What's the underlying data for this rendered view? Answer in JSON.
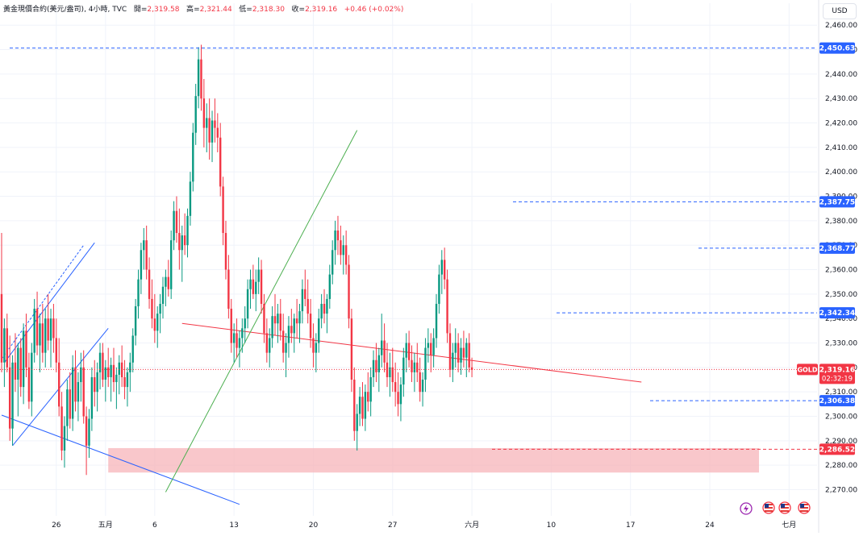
{
  "header": {
    "symbol": "黃金現價合約(美元/盎司)",
    "interval": "4小時",
    "source": "TVC",
    "open_label": "開",
    "open": "2,319.58",
    "high_label": "高",
    "high": "2,321.44",
    "low_label": "低",
    "low": "2,318.30",
    "close_label": "收",
    "close": "2,319.16",
    "change": "+0.46 (+0.02%)"
  },
  "currency_button": "USD",
  "colors": {
    "up": "#089981",
    "down": "#f23645",
    "hline": "#2962ff",
    "support_zone": "#f7b4b9",
    "trend_red": "#f23645",
    "trend_green": "#4caf50",
    "channel_blue": "#2962ff",
    "price_label": "#f23645"
  },
  "chart_data": {
    "type": "candlestick",
    "title": "",
    "ylim": [
      2262,
      2465
    ],
    "y_ticks": [
      "2,270.00",
      "2,280.00",
      "2,290.00",
      "2,300.00",
      "2,310.00",
      "2,320.00",
      "2,330.00",
      "2,340.00",
      "2,350.00",
      "2,360.00",
      "2,370.00",
      "2,380.00",
      "2,390.00",
      "2,400.00",
      "2,410.00",
      "2,420.00",
      "2,430.00",
      "2,440.00",
      "2,450.00",
      "2,460.00"
    ],
    "x_ticks": [
      {
        "label": "26",
        "index": 20
      },
      {
        "label": "五月",
        "index": 38
      },
      {
        "label": "6",
        "index": 56
      },
      {
        "label": "13",
        "index": 85
      },
      {
        "label": "20",
        "index": 114
      },
      {
        "label": "27",
        "index": 143
      },
      {
        "label": "六月",
        "index": 172
      },
      {
        "label": "10",
        "index": 201
      },
      {
        "label": "17",
        "index": 230
      },
      {
        "label": "24",
        "index": 259
      },
      {
        "label": "七月",
        "index": 288
      }
    ],
    "candles": [
      [
        2350,
        2375,
        2318,
        2322
      ],
      [
        2322,
        2340,
        2312,
        2336
      ],
      [
        2336,
        2342,
        2318,
        2320
      ],
      [
        2320,
        2333,
        2290,
        2295
      ],
      [
        2295,
        2325,
        2288,
        2322
      ],
      [
        2322,
        2334,
        2310,
        2315
      ],
      [
        2315,
        2330,
        2300,
        2328
      ],
      [
        2328,
        2332,
        2308,
        2312
      ],
      [
        2312,
        2338,
        2305,
        2335
      ],
      [
        2335,
        2342,
        2316,
        2320
      ],
      [
        2320,
        2326,
        2303,
        2306
      ],
      [
        2306,
        2330,
        2300,
        2326
      ],
      [
        2326,
        2348,
        2322,
        2344
      ],
      [
        2344,
        2351,
        2325,
        2329
      ],
      [
        2329,
        2342,
        2318,
        2338
      ],
      [
        2338,
        2346,
        2322,
        2326
      ],
      [
        2326,
        2344,
        2320,
        2340
      ],
      [
        2340,
        2350,
        2327,
        2331
      ],
      [
        2331,
        2344,
        2320,
        2340
      ],
      [
        2340,
        2346,
        2326,
        2332
      ],
      [
        2332,
        2340,
        2318,
        2322
      ],
      [
        2322,
        2332,
        2300,
        2304
      ],
      [
        2304,
        2310,
        2282,
        2286
      ],
      [
        2286,
        2300,
        2279,
        2296
      ],
      [
        2296,
        2315,
        2290,
        2311
      ],
      [
        2311,
        2318,
        2295,
        2299
      ],
      [
        2299,
        2325,
        2294,
        2320
      ],
      [
        2320,
        2327,
        2302,
        2306
      ],
      [
        2306,
        2318,
        2298,
        2314
      ],
      [
        2314,
        2326,
        2306,
        2320
      ],
      [
        2320,
        2327,
        2297,
        2300
      ],
      [
        2300,
        2304,
        2276,
        2288
      ],
      [
        2288,
        2303,
        2283,
        2299
      ],
      [
        2299,
        2320,
        2294,
        2316
      ],
      [
        2316,
        2323,
        2304,
        2310
      ],
      [
        2310,
        2322,
        2302,
        2318
      ],
      [
        2318,
        2330,
        2311,
        2326
      ],
      [
        2326,
        2330,
        2312,
        2315
      ],
      [
        2315,
        2323,
        2306,
        2320
      ],
      [
        2320,
        2328,
        2312,
        2316
      ],
      [
        2316,
        2324,
        2306,
        2321
      ],
      [
        2321,
        2328,
        2310,
        2314
      ],
      [
        2314,
        2320,
        2303,
        2317
      ],
      [
        2317,
        2325,
        2309,
        2322
      ],
      [
        2322,
        2329,
        2312,
        2316
      ],
      [
        2316,
        2323,
        2307,
        2312
      ],
      [
        2312,
        2320,
        2304,
        2318
      ],
      [
        2318,
        2326,
        2310,
        2322
      ],
      [
        2322,
        2336,
        2318,
        2333
      ],
      [
        2333,
        2348,
        2329,
        2345
      ],
      [
        2345,
        2360,
        2340,
        2356
      ],
      [
        2356,
        2371,
        2350,
        2368
      ],
      [
        2368,
        2377,
        2360,
        2372
      ],
      [
        2372,
        2378,
        2356,
        2360
      ],
      [
        2360,
        2365,
        2344,
        2348
      ],
      [
        2348,
        2356,
        2336,
        2340
      ],
      [
        2340,
        2350,
        2330,
        2335
      ],
      [
        2335,
        2345,
        2328,
        2342
      ],
      [
        2342,
        2350,
        2334,
        2346
      ],
      [
        2346,
        2357,
        2340,
        2353
      ],
      [
        2353,
        2360,
        2345,
        2357
      ],
      [
        2357,
        2364,
        2349,
        2352
      ],
      [
        2352,
        2376,
        2348,
        2372
      ],
      [
        2372,
        2388,
        2368,
        2384
      ],
      [
        2384,
        2390,
        2371,
        2375
      ],
      [
        2375,
        2385,
        2360,
        2368
      ],
      [
        2368,
        2378,
        2355,
        2374
      ],
      [
        2374,
        2383,
        2366,
        2370
      ],
      [
        2370,
        2385,
        2365,
        2382
      ],
      [
        2382,
        2400,
        2378,
        2396
      ],
      [
        2396,
        2420,
        2392,
        2416
      ],
      [
        2416,
        2436,
        2411,
        2431
      ],
      [
        2431,
        2451,
        2426,
        2446
      ],
      [
        2446,
        2452,
        2425,
        2430
      ],
      [
        2430,
        2438,
        2410,
        2418
      ],
      [
        2418,
        2428,
        2408,
        2422
      ],
      [
        2422,
        2430,
        2405,
        2412
      ],
      [
        2412,
        2425,
        2404,
        2421
      ],
      [
        2421,
        2430,
        2412,
        2418
      ],
      [
        2418,
        2424,
        2408,
        2414
      ],
      [
        2414,
        2420,
        2390,
        2394
      ],
      [
        2394,
        2398,
        2370,
        2375
      ],
      [
        2375,
        2380,
        2356,
        2360
      ],
      [
        2360,
        2366,
        2340,
        2344
      ],
      [
        2344,
        2348,
        2326,
        2330
      ],
      [
        2330,
        2338,
        2322,
        2334
      ],
      [
        2334,
        2340,
        2324,
        2328
      ],
      [
        2328,
        2335,
        2320,
        2332
      ],
      [
        2332,
        2340,
        2326,
        2336
      ],
      [
        2336,
        2345,
        2330,
        2340
      ],
      [
        2340,
        2356,
        2336,
        2352
      ],
      [
        2352,
        2360,
        2344,
        2356
      ],
      [
        2356,
        2362,
        2348,
        2350
      ],
      [
        2350,
        2360,
        2343,
        2355
      ],
      [
        2355,
        2365,
        2350,
        2360
      ],
      [
        2360,
        2364,
        2342,
        2346
      ],
      [
        2346,
        2350,
        2330,
        2334
      ],
      [
        2334,
        2340,
        2322,
        2326
      ],
      [
        2326,
        2336,
        2320,
        2332
      ],
      [
        2332,
        2345,
        2328,
        2341
      ],
      [
        2341,
        2350,
        2333,
        2338
      ],
      [
        2338,
        2346,
        2330,
        2342
      ],
      [
        2342,
        2348,
        2331,
        2335
      ],
      [
        2335,
        2342,
        2322,
        2326
      ],
      [
        2326,
        2334,
        2316,
        2330
      ],
      [
        2330,
        2341,
        2324,
        2337
      ],
      [
        2337,
        2344,
        2330,
        2334
      ],
      [
        2334,
        2342,
        2326,
        2340
      ],
      [
        2340,
        2348,
        2332,
        2338
      ],
      [
        2338,
        2346,
        2330,
        2343
      ],
      [
        2343,
        2356,
        2338,
        2352
      ],
      [
        2352,
        2360,
        2345,
        2348
      ],
      [
        2348,
        2356,
        2338,
        2342
      ],
      [
        2342,
        2348,
        2328,
        2332
      ],
      [
        2332,
        2338,
        2320,
        2326
      ],
      [
        2326,
        2334,
        2318,
        2330
      ],
      [
        2330,
        2344,
        2326,
        2340
      ],
      [
        2340,
        2350,
        2336,
        2346
      ],
      [
        2346,
        2352,
        2338,
        2342
      ],
      [
        2342,
        2350,
        2334,
        2348
      ],
      [
        2348,
        2362,
        2344,
        2358
      ],
      [
        2358,
        2372,
        2354,
        2368
      ],
      [
        2368,
        2380,
        2362,
        2376
      ],
      [
        2376,
        2382,
        2366,
        2372
      ],
      [
        2372,
        2378,
        2362,
        2366
      ],
      [
        2366,
        2374,
        2358,
        2370
      ],
      [
        2370,
        2376,
        2358,
        2362
      ],
      [
        2362,
        2366,
        2336,
        2340
      ],
      [
        2340,
        2344,
        2310,
        2315
      ],
      [
        2315,
        2320,
        2290,
        2294
      ],
      [
        2294,
        2305,
        2286,
        2301
      ],
      [
        2301,
        2312,
        2296,
        2308
      ],
      [
        2308,
        2314,
        2296,
        2299
      ],
      [
        2299,
        2313,
        2294,
        2310
      ],
      [
        2310,
        2318,
        2302,
        2306
      ],
      [
        2306,
        2320,
        2300,
        2316
      ],
      [
        2316,
        2327,
        2312,
        2323
      ],
      [
        2323,
        2330,
        2314,
        2318
      ],
      [
        2318,
        2328,
        2310,
        2325
      ],
      [
        2325,
        2342,
        2320,
        2331
      ],
      [
        2331,
        2338,
        2318,
        2322
      ],
      [
        2322,
        2330,
        2312,
        2316
      ],
      [
        2316,
        2326,
        2308,
        2320
      ],
      [
        2320,
        2328,
        2310,
        2314
      ],
      [
        2314,
        2322,
        2304,
        2310
      ],
      [
        2310,
        2318,
        2300,
        2305
      ],
      [
        2305,
        2316,
        2298,
        2313
      ],
      [
        2313,
        2328,
        2308,
        2324
      ],
      [
        2324,
        2334,
        2318,
        2330
      ],
      [
        2330,
        2335,
        2320,
        2323
      ],
      [
        2323,
        2329,
        2314,
        2318
      ],
      [
        2318,
        2326,
        2310,
        2322
      ],
      [
        2322,
        2330,
        2314,
        2318
      ],
      [
        2318,
        2324,
        2306,
        2310
      ],
      [
        2310,
        2318,
        2304,
        2315
      ],
      [
        2315,
        2332,
        2310,
        2328
      ],
      [
        2328,
        2336,
        2322,
        2330
      ],
      [
        2330,
        2334,
        2318,
        2325
      ],
      [
        2325,
        2336,
        2320,
        2332
      ],
      [
        2332,
        2350,
        2328,
        2346
      ],
      [
        2346,
        2362,
        2342,
        2358
      ],
      [
        2358,
        2368,
        2350,
        2364
      ],
      [
        2364,
        2369,
        2352,
        2356
      ],
      [
        2356,
        2360,
        2330,
        2334
      ],
      [
        2334,
        2338,
        2316,
        2319
      ],
      [
        2319,
        2330,
        2314,
        2326
      ],
      [
        2326,
        2336,
        2320,
        2330
      ],
      [
        2330,
        2334,
        2318,
        2322
      ],
      [
        2322,
        2332,
        2317,
        2328
      ],
      [
        2328,
        2335,
        2320,
        2324
      ],
      [
        2324,
        2332,
        2316,
        2330
      ],
      [
        2330,
        2334,
        2318,
        2320
      ],
      [
        2320,
        2324,
        2316,
        2319
      ]
    ],
    "price_lines": [
      {
        "value": 2450.63,
        "label": "2,450.63",
        "style": "dashed"
      },
      {
        "value": 2387.75,
        "label": "2,387.75",
        "style": "dashed"
      },
      {
        "value": 2368.77,
        "label": "2,368.77",
        "style": "dashed"
      },
      {
        "value": 2342.34,
        "label": "2,342.34",
        "style": "dashed"
      },
      {
        "value": 2306.38,
        "label": "2,306.38",
        "style": "dashed"
      },
      {
        "value": 2286.52,
        "label": "2,286.52",
        "style": "dashed"
      }
    ],
    "current_price": {
      "symbol_label": "GOLD",
      "value": 2319.16,
      "label": "2,319.16",
      "countdown": "02:32:19"
    },
    "support_zone": {
      "from": 2277,
      "to": 2287
    }
  }
}
